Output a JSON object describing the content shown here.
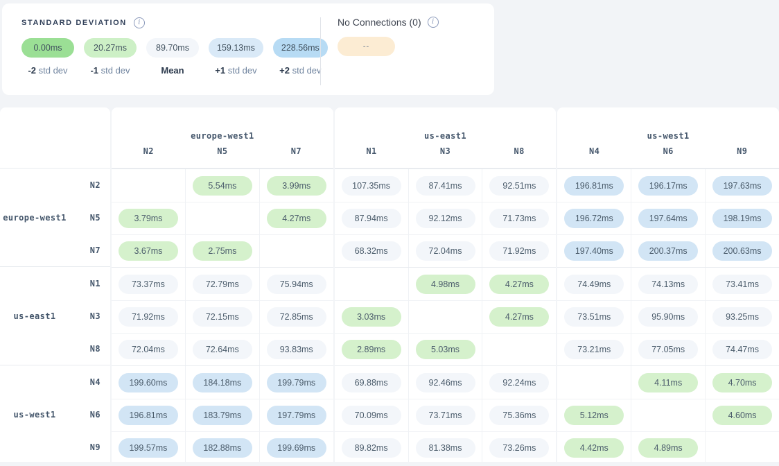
{
  "legend": {
    "title": "STANDARD DEVIATION",
    "items": [
      {
        "value": "0.00ms",
        "label_num": "-2",
        "label_text": "std dev",
        "color": "#9bdf95"
      },
      {
        "value": "20.27ms",
        "label_num": "-1",
        "label_text": "std dev",
        "color": "#cdf0c6"
      },
      {
        "value": "89.70ms",
        "label_num": "Mean",
        "label_text": "",
        "color": "#f3f6fa"
      },
      {
        "value": "159.13ms",
        "label_num": "+1",
        "label_text": "std dev",
        "color": "#d9e9f7"
      },
      {
        "value": "228.56ms",
        "label_num": "+2",
        "label_text": "std dev",
        "color": "#b7dbf4"
      }
    ]
  },
  "no_connections": {
    "label": "No Connections (0)",
    "pill_text": "--",
    "pill_color": "#fcecd3"
  },
  "cell_colors": {
    "low": "#d5f1cc",
    "mid": "#f3f6fa",
    "high": "#d2e5f5"
  },
  "matrix": {
    "col_groups": [
      {
        "region": "europe-west1",
        "nodes": [
          "N2",
          "N5",
          "N7"
        ]
      },
      {
        "region": "us-east1",
        "nodes": [
          "N1",
          "N3",
          "N8"
        ]
      },
      {
        "region": "us-west1",
        "nodes": [
          "N4",
          "N6",
          "N9"
        ]
      }
    ],
    "row_groups": [
      {
        "region": "europe-west1",
        "rows": [
          {
            "node": "N2",
            "values": [
              null,
              "5.54ms",
              "3.99ms",
              "107.35ms",
              "87.41ms",
              "92.51ms",
              "196.81ms",
              "196.17ms",
              "197.63ms"
            ]
          },
          {
            "node": "N5",
            "values": [
              "3.79ms",
              null,
              "4.27ms",
              "87.94ms",
              "92.12ms",
              "71.73ms",
              "196.72ms",
              "197.64ms",
              "198.19ms"
            ]
          },
          {
            "node": "N7",
            "values": [
              "3.67ms",
              "2.75ms",
              null,
              "68.32ms",
              "72.04ms",
              "71.92ms",
              "197.40ms",
              "200.37ms",
              "200.63ms"
            ]
          }
        ]
      },
      {
        "region": "us-east1",
        "rows": [
          {
            "node": "N1",
            "values": [
              "73.37ms",
              "72.79ms",
              "75.94ms",
              null,
              "4.98ms",
              "4.27ms",
              "74.49ms",
              "74.13ms",
              "73.41ms"
            ]
          },
          {
            "node": "N3",
            "values": [
              "71.92ms",
              "72.15ms",
              "72.85ms",
              "3.03ms",
              null,
              "4.27ms",
              "73.51ms",
              "95.90ms",
              "93.25ms"
            ]
          },
          {
            "node": "N8",
            "values": [
              "72.04ms",
              "72.64ms",
              "93.83ms",
              "2.89ms",
              "5.03ms",
              null,
              "73.21ms",
              "77.05ms",
              "74.47ms"
            ]
          }
        ]
      },
      {
        "region": "us-west1",
        "rows": [
          {
            "node": "N4",
            "values": [
              "199.60ms",
              "184.18ms",
              "199.79ms",
              "69.88ms",
              "92.46ms",
              "92.24ms",
              null,
              "4.11ms",
              "4.70ms"
            ]
          },
          {
            "node": "N6",
            "values": [
              "196.81ms",
              "183.79ms",
              "197.79ms",
              "70.09ms",
              "73.71ms",
              "75.36ms",
              "5.12ms",
              null,
              "4.60ms"
            ]
          },
          {
            "node": "N9",
            "values": [
              "199.57ms",
              "182.88ms",
              "199.69ms",
              "89.82ms",
              "81.38ms",
              "73.26ms",
              "4.42ms",
              "4.89ms",
              null
            ]
          }
        ]
      }
    ]
  }
}
